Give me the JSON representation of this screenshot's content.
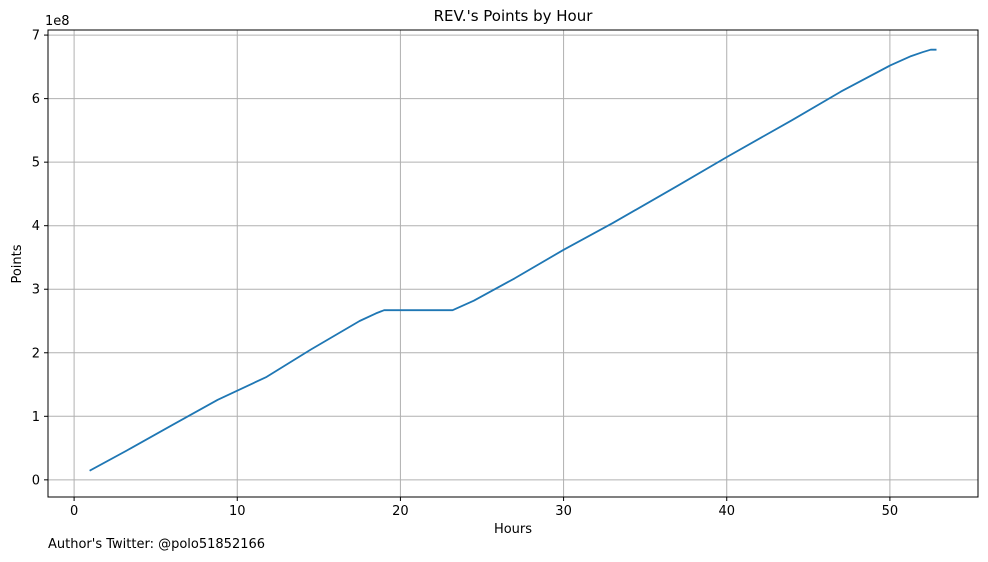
{
  "chart_data": {
    "type": "line",
    "title": "REV.'s Points by Hour",
    "xlabel": "Hours",
    "ylabel": "Points",
    "y_scale_label": "1e8",
    "xlim": [
      -1.6,
      55.4
    ],
    "ylim": [
      -0.27,
      7.08
    ],
    "x_ticks": [
      0,
      10,
      20,
      30,
      40,
      50
    ],
    "y_ticks": [
      0,
      1,
      2,
      3,
      4,
      5,
      6,
      7
    ],
    "grid": true,
    "line_color": "#1f77b4",
    "series": [
      {
        "x": [
          1.0,
          3.5,
          6.0,
          8.8,
          11.8,
          14.5,
          17.5,
          18.5,
          19.0,
          20.0,
          21.0,
          22.0,
          23.2,
          24.5,
          27.0,
          30.0,
          33.0,
          37.0,
          40.0,
          44.0,
          47.0,
          50.0,
          51.3,
          52.0,
          52.5,
          52.8
        ],
        "y": [
          0.15,
          0.5,
          0.86,
          1.26,
          1.62,
          2.05,
          2.5,
          2.62,
          2.67,
          2.67,
          2.67,
          2.67,
          2.67,
          2.82,
          3.17,
          3.62,
          4.04,
          4.63,
          5.08,
          5.66,
          6.11,
          6.52,
          6.67,
          6.73,
          6.77,
          6.77
        ]
      }
    ]
  },
  "footer": {
    "note": "Author's Twitter: @polo51852166"
  }
}
